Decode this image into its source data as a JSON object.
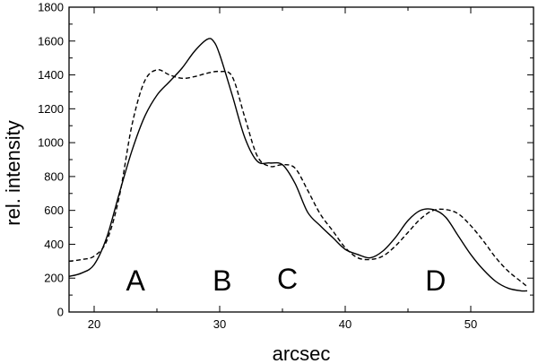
{
  "chart_data": {
    "type": "line",
    "title": "",
    "xlabel": "arcsec",
    "ylabel": "rel. intensity",
    "xlim": [
      18,
      55
    ],
    "ylim": [
      0,
      1800
    ],
    "xticks": [
      20,
      30,
      40,
      50
    ],
    "yticks": [
      0,
      200,
      400,
      600,
      800,
      1000,
      1200,
      1400,
      1600,
      1800
    ],
    "grid": false,
    "legend": "none",
    "series": [
      {
        "style": "solid",
        "x": [
          18,
          19,
          20,
          21,
          22,
          23,
          24,
          25,
          26,
          27,
          28,
          29,
          29.5,
          30,
          31,
          32,
          33,
          34,
          35,
          36,
          37,
          38,
          39,
          40,
          41,
          42,
          43,
          44,
          45,
          46,
          47,
          48,
          49,
          50,
          51,
          52,
          53,
          54,
          54.5
        ],
        "y": [
          210,
          230,
          280,
          440,
          700,
          950,
          1150,
          1280,
          1360,
          1440,
          1540,
          1610,
          1600,
          1520,
          1280,
          1030,
          890,
          880,
          870,
          760,
          590,
          510,
          440,
          370,
          340,
          320,
          360,
          440,
          540,
          600,
          605,
          560,
          450,
          340,
          250,
          180,
          140,
          125,
          125
        ]
      },
      {
        "style": "dashed",
        "x": [
          18,
          19,
          20,
          21,
          22,
          23,
          24,
          25,
          26,
          27,
          28,
          29,
          30,
          31,
          32,
          33,
          34,
          35,
          36,
          37,
          38,
          39,
          40,
          41,
          42,
          43,
          44,
          45,
          46,
          47,
          48,
          49,
          50,
          51,
          52,
          53,
          54,
          54.5
        ],
        "y": [
          300,
          310,
          330,
          420,
          680,
          1100,
          1360,
          1430,
          1400,
          1380,
          1390,
          1410,
          1420,
          1390,
          1150,
          920,
          860,
          870,
          850,
          720,
          580,
          480,
          380,
          320,
          310,
          330,
          390,
          470,
          550,
          600,
          605,
          580,
          510,
          420,
          320,
          240,
          180,
          150
        ]
      }
    ],
    "annotations": [
      {
        "text": "A",
        "x": 23.3,
        "y": 190
      },
      {
        "text": "B",
        "x": 30.2,
        "y": 190
      },
      {
        "text": "C",
        "x": 35.4,
        "y": 200
      },
      {
        "text": "D",
        "x": 47.2,
        "y": 190
      }
    ]
  }
}
